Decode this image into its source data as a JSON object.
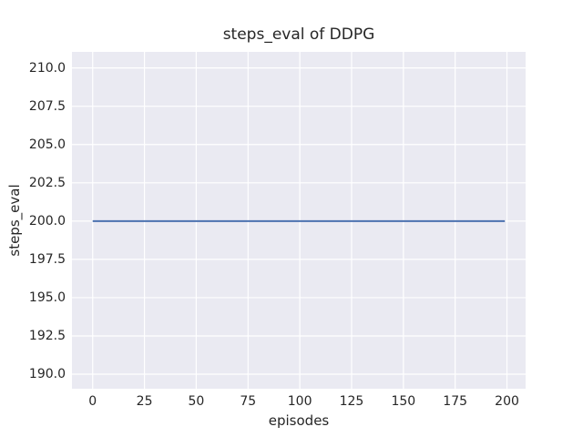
{
  "chart_data": {
    "type": "line",
    "title": "steps_eval of DDPG",
    "xlabel": "episodes",
    "ylabel": "steps_eval",
    "xlim": [
      -10.0,
      209.0
    ],
    "ylim": [
      189.05,
      211.05
    ],
    "xticks": [
      0,
      25,
      50,
      75,
      100,
      125,
      150,
      175,
      200
    ],
    "xtick_labels": [
      "0",
      "25",
      "50",
      "75",
      "100",
      "125",
      "150",
      "175",
      "200"
    ],
    "yticks": [
      190.0,
      192.5,
      195.0,
      197.5,
      200.0,
      202.5,
      205.0,
      207.5,
      210.0
    ],
    "ytick_labels": [
      "190.0",
      "192.5",
      "195.0",
      "197.5",
      "200.0",
      "202.5",
      "205.0",
      "207.5",
      "210.0"
    ],
    "grid": true,
    "legend": null,
    "series": [
      {
        "name": "DDPG steps_eval",
        "points": [
          [
            0,
            200
          ],
          [
            199,
            200
          ]
        ],
        "color": "#4c72b0",
        "note": "constant horizontal line at y = 200 from episode 0 to episode 199"
      }
    ],
    "colors": {
      "figure_background": "#ffffff",
      "plot_background": "#eaeaf2",
      "gridline": "#ffffff",
      "text": "#262626",
      "line": "#4c72b0"
    }
  }
}
